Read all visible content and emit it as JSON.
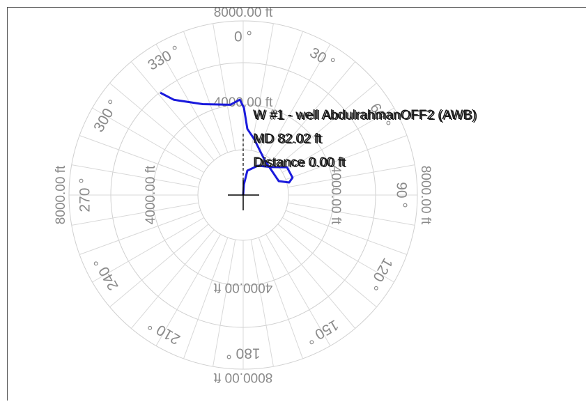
{
  "chart_data": {
    "type": "polar",
    "rlim": [
      0,
      8000
    ],
    "rticks": [
      {
        "value": 4000,
        "label": "4000.00 ft"
      },
      {
        "value": 8000,
        "label": "8000.00 ft"
      }
    ],
    "angle_ticks": [
      {
        "value": 0,
        "label": "0 °"
      },
      {
        "value": 30,
        "label": "30 °"
      },
      {
        "value": 60,
        "label": "60 °"
      },
      {
        "value": 90,
        "label": "90 °"
      },
      {
        "value": 120,
        "label": "120 °"
      },
      {
        "value": 150,
        "label": "150 °"
      },
      {
        "value": 180,
        "label": "180 °"
      },
      {
        "value": 210,
        "label": "210 °"
      },
      {
        "value": 240,
        "label": "240 °"
      },
      {
        "value": 270,
        "label": "270 °"
      },
      {
        "value": 300,
        "label": "300 °"
      },
      {
        "value": 330,
        "label": "330 °"
      }
    ],
    "grid": true,
    "series": [
      {
        "color": "#1a1adc",
        "angles": [
          321,
          324,
          336,
          352,
          358,
          0.5,
          3.6,
          11.3,
          31.8,
          68.6,
          74.7,
          70.6,
          57.6,
          45.7,
          26.6,
          9.7,
          3.8,
          0
        ],
        "values": [
          5860,
          5240,
          4430,
          4060,
          4250,
          3880,
          2950,
          2530,
          1820,
          1700,
          2120,
          2330,
          2310,
          1780,
          1460,
          1100,
          465,
          0
        ]
      }
    ],
    "tooltip": [
      "W #1 - well AbdulrahmanOFF2 (AWB)",
      "MD 82.02 ft",
      "Distance 0.00 ft"
    ]
  }
}
